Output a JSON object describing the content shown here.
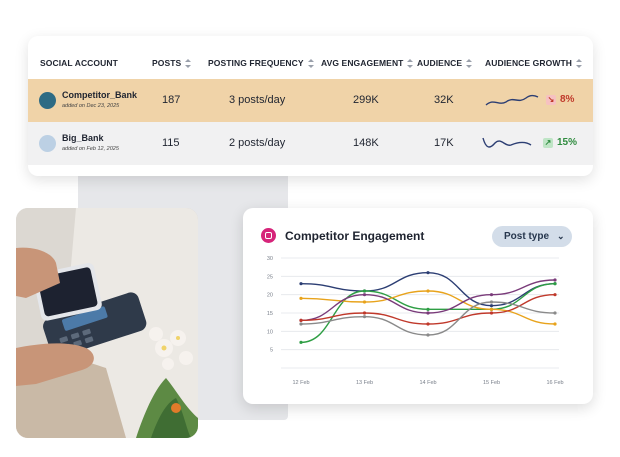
{
  "table": {
    "headers": {
      "account": "SOCIAL ACCOUNT",
      "posts": "POSTS",
      "frequency": "POSTING FREQUENCY",
      "engagement": "AVG ENGAGEMENT",
      "audience": "AUDIENCE",
      "growth": "AUDIENCE GROWTH"
    },
    "rows": [
      {
        "name": "Competitor_Bank",
        "added": "added on Dec 23, 2025",
        "avatar_color": "#2e6b84",
        "posts": "187",
        "frequency": "3 posts/day",
        "engagement": "299K",
        "audience": "32K",
        "growth": "8%",
        "growth_direction": "down",
        "growth_color": "#c0392b",
        "row_color": "#f0d3a8"
      },
      {
        "name": "Big_Bank",
        "added": "added on Feb 12, 2025",
        "avatar_color": "#bcd0e4",
        "posts": "115",
        "frequency": "2 posts/day",
        "engagement": "148K",
        "audience": "17K",
        "growth": "15%",
        "growth_direction": "up",
        "growth_color": "#2e8b3e",
        "row_color": "#f1f1f2"
      }
    ]
  },
  "chart_card": {
    "title": "Competitor Engagement",
    "dropdown_label": "Post type"
  },
  "chart_data": {
    "type": "line",
    "title": "Competitor Engagement",
    "x": [
      "12 Feb",
      "13 Feb",
      "14 Feb",
      "15 Feb",
      "16 Feb"
    ],
    "ylim": [
      0,
      30
    ],
    "yticks": [
      5,
      10,
      15,
      20,
      25,
      30
    ],
    "grid": true,
    "series": [
      {
        "color": "#2c3e73",
        "values": [
          23,
          21,
          26,
          17,
          23
        ]
      },
      {
        "color": "#2e9e44",
        "values": [
          7,
          21,
          16,
          16,
          23
        ]
      },
      {
        "color": "#e8a31c",
        "values": [
          19,
          18,
          21,
          16,
          12
        ]
      },
      {
        "color": "#7a3b7a",
        "values": [
          13,
          20,
          15,
          20,
          24
        ]
      },
      {
        "color": "#c0392b",
        "values": [
          13,
          15,
          12,
          15,
          20
        ]
      },
      {
        "color": "#8a8a8a",
        "values": [
          12,
          14,
          9,
          18,
          15
        ]
      }
    ]
  },
  "colors": {
    "accent": "#d6247a",
    "dropdown_bg": "#d3dde9"
  }
}
